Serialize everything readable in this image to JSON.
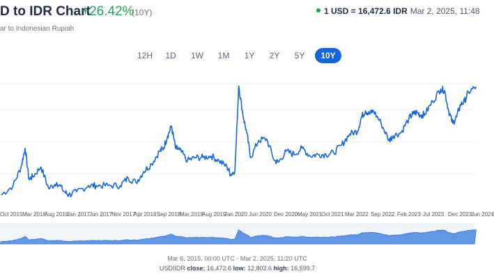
{
  "header": {
    "title": "D to IDR Chart",
    "change": "+26.42%",
    "period": "(10Y)",
    "subtitle": "ar to Indonesian Rupiah"
  },
  "rate": {
    "label": "1 USD = 16,472.6 IDR",
    "timestamp": "Mar 2, 2025, 11:48"
  },
  "range_buttons": [
    "12H",
    "1D",
    "1W",
    "1M",
    "1Y",
    "2Y",
    "5Y",
    "10Y"
  ],
  "active_range": "10Y",
  "x_labels": [
    "Oct 2015",
    "Mar 2016",
    "Aug 2016",
    "Jan 2017",
    "Jun 2017",
    "Nov 2017",
    "Apr 2018",
    "Sep 2018",
    "Mar 2019",
    "Aug 2019",
    "Jan 2020",
    "Jun 2020",
    "Dec 2020",
    "May 2021",
    "Oct 2021",
    "Mar 2022",
    "Sep 2022",
    "Feb 2023",
    "Jul 2023",
    "Dec 2023",
    "Jun 2024"
  ],
  "footer": {
    "range_text": "Mar 6, 2015, 00:00 UTC - Mar 2, 2025, 11:20 UTC",
    "pair": "USD/IDR",
    "close_label": "close:",
    "close_value": "16,472.6",
    "low_label": "low:",
    "low_value": "12,802.6",
    "high_label": "high:",
    "high_value": "16,599.7"
  },
  "colors": {
    "line": "#1565d8",
    "accent_active": "#1565d8",
    "positive": "#23a455",
    "nav_fill": "#4a86e0"
  },
  "chart_data": {
    "type": "line",
    "title": "",
    "xlabel": "",
    "ylabel": "",
    "ylim": [
      12700,
      16800
    ],
    "series": [
      {
        "x": [
          "2015-03",
          "2015-06",
          "2015-08",
          "2015-09",
          "2015-10",
          "2015-11",
          "2016-01",
          "2016-03",
          "2016-05",
          "2016-07",
          "2016-08",
          "2016-10",
          "2017-01",
          "2017-03",
          "2017-06",
          "2017-09",
          "2017-11",
          "2018-01",
          "2018-03",
          "2018-05",
          "2018-07",
          "2018-08",
          "2018-09",
          "2018-10",
          "2018-11",
          "2018-12",
          "2019-02",
          "2019-04",
          "2019-06",
          "2019-08",
          "2019-10",
          "2019-12",
          "2020-01",
          "2020-02",
          "2020-03",
          "2020-04",
          "2020-05",
          "2020-06",
          "2020-08",
          "2020-10",
          "2020-12",
          "2021-01",
          "2021-03",
          "2021-05",
          "2021-07",
          "2021-09",
          "2021-11",
          "2022-01",
          "2022-03",
          "2022-05",
          "2022-07",
          "2022-09",
          "2022-10",
          "2022-11",
          "2022-12",
          "2023-01",
          "2023-03",
          "2023-05",
          "2023-06",
          "2023-08",
          "2023-10",
          "2023-11",
          "2023-12",
          "2024-01",
          "2024-02",
          "2024-04",
          "2024-06",
          "2024-07",
          "2024-08",
          "2024-09",
          "2024-10",
          "2024-11",
          "2024-12",
          "2025-01",
          "2025-03"
        ],
        "values": [
          13000,
          13300,
          13900,
          14500,
          13500,
          13600,
          13900,
          13200,
          13400,
          13100,
          13000,
          13100,
          13300,
          13300,
          13300,
          13300,
          13550,
          13400,
          13750,
          14000,
          14400,
          14500,
          14900,
          15200,
          14500,
          14450,
          14100,
          14200,
          14200,
          14250,
          14100,
          13900,
          13650,
          13800,
          16500,
          15600,
          15000,
          14200,
          14750,
          14800,
          14100,
          14050,
          14400,
          14300,
          14500,
          14250,
          14300,
          14300,
          14350,
          14600,
          14950,
          15050,
          15500,
          15700,
          15600,
          15700,
          15300,
          14750,
          14900,
          15000,
          15450,
          15600,
          15650,
          15550,
          15600,
          16000,
          16400,
          16350,
          15700,
          15300,
          15500,
          15900,
          16000,
          16300,
          16470
        ]
      }
    ]
  }
}
